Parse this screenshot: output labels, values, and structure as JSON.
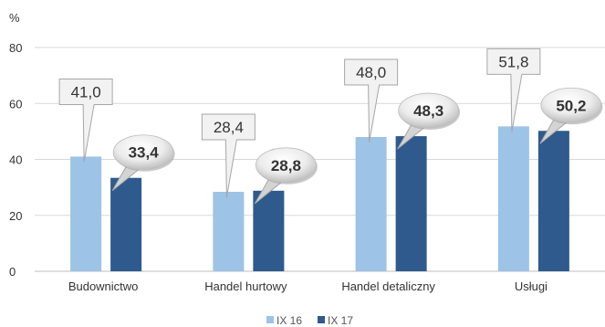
{
  "chart_data": {
    "type": "bar",
    "ylabel": "%",
    "ylim": [
      0,
      80
    ],
    "yticks": [
      0,
      20,
      40,
      60,
      80
    ],
    "grid": true,
    "legend_position": "bottom-center",
    "categories": [
      "Budownictwo",
      "Handel hurtowy",
      "Handel detaliczny",
      "Usługi"
    ],
    "series": [
      {
        "name": "IX 16",
        "color": "#9dc3e6",
        "values": [
          41.0,
          28.4,
          48.0,
          51.8
        ],
        "labels": [
          "41,0",
          "28,4",
          "48,0",
          "51,8"
        ]
      },
      {
        "name": "IX 17",
        "color": "#2e5a8e",
        "values": [
          33.4,
          28.8,
          48.3,
          50.2
        ],
        "labels": [
          "33,4",
          "28,8",
          "48,3",
          "50,2"
        ]
      }
    ]
  }
}
